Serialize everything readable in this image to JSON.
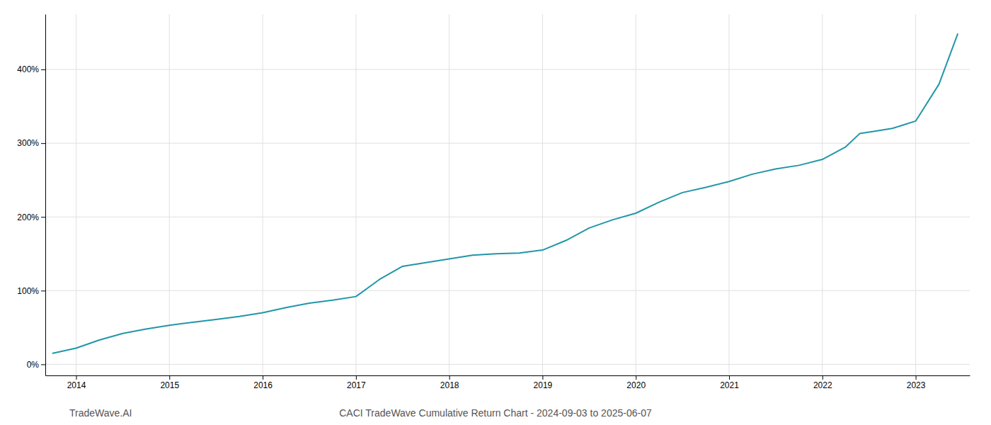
{
  "chart_data": {
    "type": "line",
    "title": "CACI TradeWave Cumulative Return Chart - 2024-09-03 to 2025-06-07",
    "annotations": [
      "TradeWave.AI"
    ],
    "color": "#2196a8",
    "grid": true,
    "x": [
      2013.75,
      2014.0,
      2014.25,
      2014.5,
      2014.75,
      2015.0,
      2015.25,
      2015.5,
      2015.75,
      2016.0,
      2016.25,
      2016.5,
      2016.75,
      2017.0,
      2017.25,
      2017.5,
      2017.75,
      2018.0,
      2018.25,
      2018.5,
      2018.75,
      2019.0,
      2019.25,
      2019.5,
      2019.75,
      2020.0,
      2020.25,
      2020.5,
      2020.75,
      2021.0,
      2021.25,
      2021.5,
      2021.75,
      2022.0,
      2022.25,
      2022.4,
      2022.55,
      2022.75,
      2023.0,
      2023.25,
      2023.45
    ],
    "values": [
      15,
      22,
      33,
      42,
      48,
      53,
      57,
      61,
      65,
      70,
      77,
      83,
      87,
      92,
      115,
      133,
      138,
      143,
      148,
      150,
      151,
      155,
      168,
      185,
      196,
      205,
      220,
      233,
      240,
      248,
      258,
      265,
      270,
      278,
      295,
      313,
      316,
      320,
      330,
      380,
      448
    ],
    "xlim": [
      2013.67,
      2023.58
    ],
    "xticks": [
      2014,
      2015,
      2016,
      2017,
      2018,
      2019,
      2020,
      2021,
      2022,
      2023
    ],
    "ylim": [
      -15,
      475
    ],
    "yticks": [
      {
        "value": 0,
        "label": "0%"
      },
      {
        "value": 100,
        "label": "100%"
      },
      {
        "value": 200,
        "label": "200%"
      },
      {
        "value": 300,
        "label": "300%"
      },
      {
        "value": 400,
        "label": "400%"
      }
    ]
  }
}
